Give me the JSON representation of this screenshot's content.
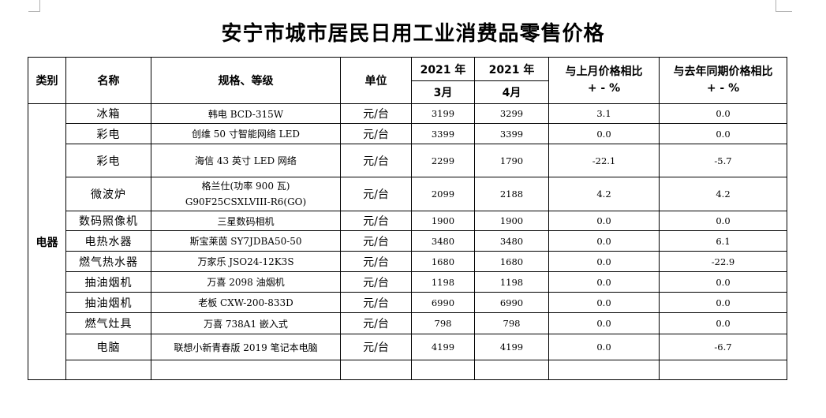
{
  "title": "安宁市城市居民日用工业消费品零售价格",
  "headers": {
    "category": "类别",
    "name": "名称",
    "spec": "规格、等级",
    "unit": "单位",
    "year_a": "2021 年",
    "year_b": "2021 年",
    "month_a": "3月",
    "month_b": "4月",
    "mom_line1": "与上月价格相比",
    "mom_line2": "+ - %",
    "yoy_line1": "与去年同期价格相比",
    "yoy_line2": "+ - %"
  },
  "category": "电器",
  "rows": [
    {
      "name": "冰箱",
      "spec": "韩电 BCD-315W",
      "unit": "元/台",
      "mar": "3199",
      "apr": "3299",
      "mom": "3.1",
      "yoy": "0.0"
    },
    {
      "name": "彩电",
      "spec": "创维 50 寸智能网络 LED",
      "unit": "元/台",
      "mar": "3399",
      "apr": "3399",
      "mom": "0.0",
      "yoy": "0.0"
    },
    {
      "name": "彩电",
      "spec": "海信 43 英寸 LED 网络",
      "unit": "元/台",
      "mar": "2299",
      "apr": "1790",
      "mom": "-22.1",
      "yoy": "-5.7"
    },
    {
      "name": "微波炉",
      "spec_line1": "格兰仕(功率 900 瓦)",
      "spec_line2": "G90F25CSXLVIII-R6(GO)",
      "unit": "元/台",
      "mar": "2099",
      "apr": "2188",
      "mom": "4.2",
      "yoy": "4.2"
    },
    {
      "name": "数码照像机",
      "spec": "三星数码相机",
      "unit": "元/台",
      "mar": "1900",
      "apr": "1900",
      "mom": "0.0",
      "yoy": "0.0"
    },
    {
      "name": "电热水器",
      "spec": "斯宝莱茵 SY7JDBA50-50",
      "unit": "元/台",
      "mar": "3480",
      "apr": "3480",
      "mom": "0.0",
      "yoy": "6.1"
    },
    {
      "name": "燃气热水器",
      "spec": "万家乐 JSO24-12K3S",
      "unit": "元/台",
      "mar": "1680",
      "apr": "1680",
      "mom": "0.0",
      "yoy": "-22.9"
    },
    {
      "name": "抽油烟机",
      "spec": "万喜 2098 油烟机",
      "unit": "元/台",
      "mar": "1198",
      "apr": "1198",
      "mom": "0.0",
      "yoy": "0.0"
    },
    {
      "name": "抽油烟机",
      "spec": "老板 CXW-200-833D",
      "unit": "元/台",
      "mar": "6990",
      "apr": "6990",
      "mom": "0.0",
      "yoy": "0.0"
    },
    {
      "name": "燃气灶具",
      "spec": "万喜 738A1 嵌入式",
      "unit": "元/台",
      "mar": "798",
      "apr": "798",
      "mom": "0.0",
      "yoy": "0.0"
    },
    {
      "name": "电脑",
      "spec": "联想小新青春版 2019 笔记本电脑",
      "unit": "元/台",
      "mar": "4199",
      "apr": "4199",
      "mom": "0.0",
      "yoy": "-6.7"
    }
  ]
}
